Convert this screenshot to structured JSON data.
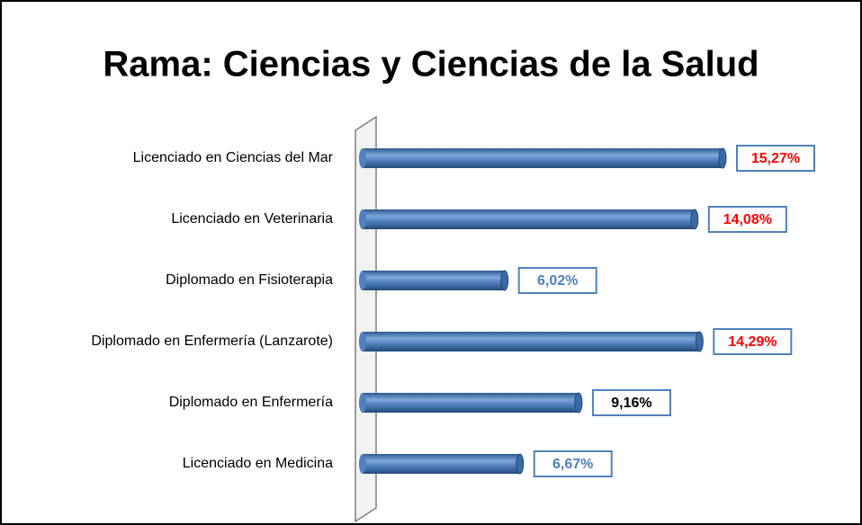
{
  "chart_data": {
    "type": "hbar",
    "title": "Rama: Ciencias y Ciencias de la Salud",
    "categories": [
      "Licenciado en Ciencias del Mar",
      "Licenciado en Veterinaria",
      "Diplomado en Fisioterapia",
      "Diplomado en Enfermería (Lanzarote)",
      "Diplomado en Enfermería",
      "Licenciado en Medicina"
    ],
    "values": [
      15.27,
      14.08,
      6.02,
      14.29,
      9.16,
      6.67
    ],
    "value_labels": [
      "15,27%",
      "14,08%",
      "6,02%",
      "14,29%",
      "9,16%",
      "6,67%"
    ],
    "label_colors": [
      "#ff0000",
      "#ff0000",
      "#4f81bd",
      "#ff0000",
      "#000000",
      "#4f81bd"
    ],
    "color": "#4f81bd"
  }
}
